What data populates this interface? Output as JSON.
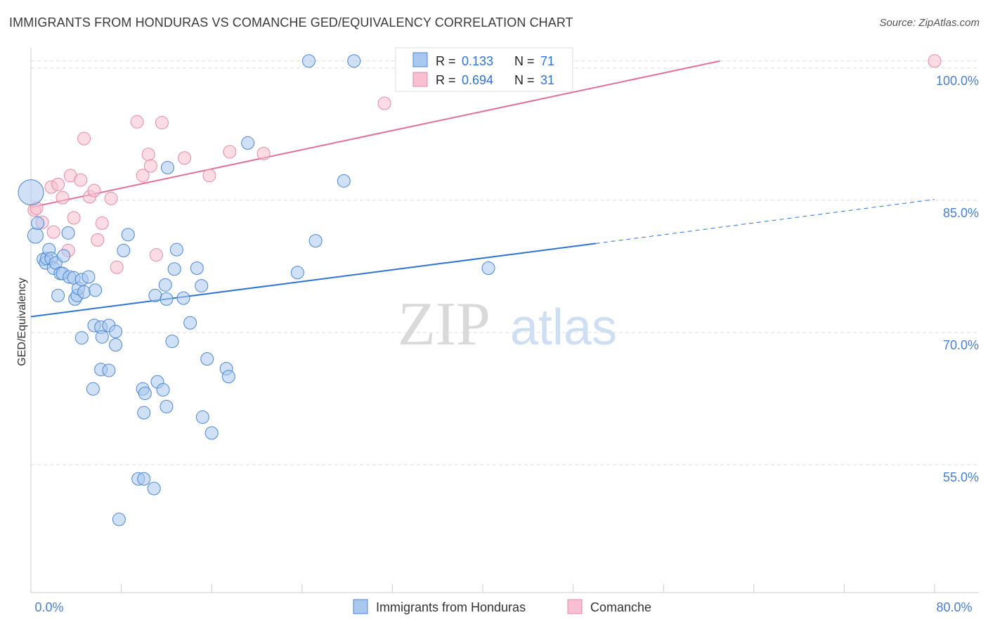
{
  "title": "IMMIGRANTS FROM HONDURAS VS COMANCHE GED/EQUIVALENCY CORRELATION CHART",
  "source": "Source: ZipAtlas.com",
  "watermark": {
    "zip": "ZIP",
    "atlas": "atlas"
  },
  "colors": {
    "blue_fill": "#a9c8f0",
    "blue_stroke": "#4a86d4",
    "blue_line": "#2f73d3",
    "pink_fill": "#f7bfd0",
    "pink_stroke": "#e68aa8",
    "pink_line": "#e0709a",
    "axis_text": "#4a7fcc",
    "grid": "#dddddd"
  },
  "legend": {
    "rows": [
      {
        "r_label": "R =",
        "r_value": "0.133",
        "n_label": "N =",
        "n_value": "71"
      },
      {
        "r_label": "R =",
        "r_value": "0.694",
        "n_label": "N =",
        "n_value": "31"
      }
    ]
  },
  "bottom_legend": [
    "Immigrants from Honduras",
    "Comanche"
  ],
  "chart_data": {
    "type": "scatter",
    "title": "IMMIGRANTS FROM HONDURAS VS COMANCHE GED/EQUIVALENCY CORRELATION CHART",
    "xlabel": "",
    "ylabel": "GED/Equivalency",
    "xlim": [
      0,
      80
    ],
    "ylim": [
      40.5,
      101.5
    ],
    "x_tick_labels": [
      "0.0%",
      "80.0%"
    ],
    "y_ticks": [
      55,
      70,
      85,
      100
    ],
    "y_tick_labels": [
      "55.0%",
      "70.0%",
      "85.0%",
      "100.0%"
    ],
    "grid": true,
    "legend_position": "top-center",
    "series": [
      {
        "name": "Immigrants from Honduras",
        "color": "#4a86d4",
        "trend": {
          "x": [
            0,
            50
          ],
          "y": [
            71.8,
            80.1
          ],
          "dashed_to": [
            80,
            85.1
          ]
        },
        "points": [
          [
            0,
            85.9,
            3
          ],
          [
            0.4,
            81.0,
            2
          ],
          [
            0.6,
            82.4,
            1
          ],
          [
            1.1,
            78.3,
            1
          ],
          [
            1.3,
            77.9,
            1
          ],
          [
            1.4,
            78.4,
            1
          ],
          [
            1.6,
            79.4,
            1
          ],
          [
            1.8,
            78.4,
            1
          ],
          [
            2.0,
            77.3,
            1
          ],
          [
            2.2,
            77.9,
            1
          ],
          [
            2.4,
            74.2,
            1
          ],
          [
            2.6,
            76.7,
            1
          ],
          [
            2.8,
            76.7,
            1
          ],
          [
            2.9,
            78.7,
            1
          ],
          [
            3.3,
            81.3,
            1
          ],
          [
            3.4,
            76.3,
            1
          ],
          [
            3.8,
            76.2,
            1
          ],
          [
            3.9,
            73.8,
            1
          ],
          [
            4.1,
            74.2,
            1
          ],
          [
            4.2,
            75.0,
            1
          ],
          [
            4.5,
            76.0,
            1
          ],
          [
            4.7,
            74.6,
            1
          ],
          [
            5.1,
            76.3,
            1
          ],
          [
            5.7,
            74.8,
            1
          ],
          [
            4.5,
            69.4,
            1
          ],
          [
            5.6,
            70.8,
            1
          ],
          [
            6.2,
            70.6,
            1
          ],
          [
            6.3,
            69.5,
            1
          ],
          [
            6.9,
            70.8,
            1
          ],
          [
            7.5,
            70.1,
            1
          ],
          [
            7.5,
            68.6,
            1
          ],
          [
            6.2,
            65.8,
            1
          ],
          [
            6.9,
            65.7,
            1
          ],
          [
            5.5,
            63.6,
            1
          ],
          [
            8.2,
            79.3,
            1
          ],
          [
            8.6,
            81.1,
            1
          ],
          [
            9.9,
            63.6,
            1
          ],
          [
            10.1,
            63.1,
            1
          ],
          [
            10.0,
            60.9,
            1
          ],
          [
            9.5,
            53.4,
            1
          ],
          [
            10.0,
            53.4,
            1
          ],
          [
            10.9,
            52.3,
            1
          ],
          [
            7.8,
            48.8,
            1
          ],
          [
            11.0,
            74.2,
            1
          ],
          [
            11.9,
            75.4,
            1
          ],
          [
            11.2,
            64.4,
            1
          ],
          [
            11.7,
            63.5,
            1
          ],
          [
            12.0,
            61.6,
            1
          ],
          [
            12.5,
            69.0,
            1
          ],
          [
            12.0,
            73.8,
            1
          ],
          [
            12.1,
            88.7,
            1
          ],
          [
            12.7,
            77.2,
            1
          ],
          [
            12.9,
            79.4,
            1
          ],
          [
            13.5,
            73.9,
            1
          ],
          [
            14.1,
            71.1,
            1
          ],
          [
            14.7,
            77.3,
            1
          ],
          [
            15.1,
            75.3,
            1
          ],
          [
            15.2,
            60.4,
            1
          ],
          [
            15.6,
            67.0,
            1
          ],
          [
            16.0,
            58.6,
            1
          ],
          [
            17.3,
            65.9,
            1
          ],
          [
            17.5,
            65.0,
            1
          ],
          [
            19.2,
            91.5,
            1
          ],
          [
            23.6,
            76.8,
            1
          ],
          [
            25.2,
            80.4,
            1
          ],
          [
            27.7,
            87.2,
            1
          ],
          [
            24.6,
            100.8,
            1
          ],
          [
            28.6,
            100.8,
            1
          ],
          [
            40.5,
            77.3,
            1
          ]
        ]
      },
      {
        "name": "Comanche",
        "color": "#e68aa8",
        "trend": {
          "x": [
            0,
            61
          ],
          "y": [
            84.2,
            100.8
          ]
        },
        "points": [
          [
            0.3,
            83.9,
            1
          ],
          [
            0.5,
            84.1,
            1
          ],
          [
            1.0,
            82.5,
            1
          ],
          [
            1.8,
            86.5,
            1
          ],
          [
            2.0,
            81.4,
            1
          ],
          [
            2.4,
            86.8,
            1
          ],
          [
            2.8,
            85.3,
            1
          ],
          [
            3.3,
            79.3,
            1
          ],
          [
            3.5,
            87.8,
            1
          ],
          [
            3.8,
            83.0,
            1
          ],
          [
            4.4,
            87.3,
            1
          ],
          [
            4.7,
            92.0,
            1
          ],
          [
            5.2,
            85.4,
            1
          ],
          [
            5.6,
            86.1,
            1
          ],
          [
            5.9,
            80.5,
            1
          ],
          [
            6.3,
            82.4,
            1
          ],
          [
            7.1,
            85.2,
            1
          ],
          [
            7.6,
            77.4,
            1
          ],
          [
            9.4,
            93.9,
            1
          ],
          [
            9.9,
            87.8,
            1
          ],
          [
            10.4,
            90.2,
            1
          ],
          [
            10.6,
            88.9,
            1
          ],
          [
            11.1,
            78.8,
            1
          ],
          [
            11.6,
            93.8,
            1
          ],
          [
            13.6,
            89.8,
            1
          ],
          [
            15.8,
            87.8,
            1
          ],
          [
            17.6,
            90.5,
            1
          ],
          [
            20.6,
            90.3,
            1
          ],
          [
            31.3,
            96.0,
            1
          ],
          [
            33.1,
            100.9,
            1
          ],
          [
            80.0,
            100.8,
            1
          ]
        ]
      }
    ]
  }
}
